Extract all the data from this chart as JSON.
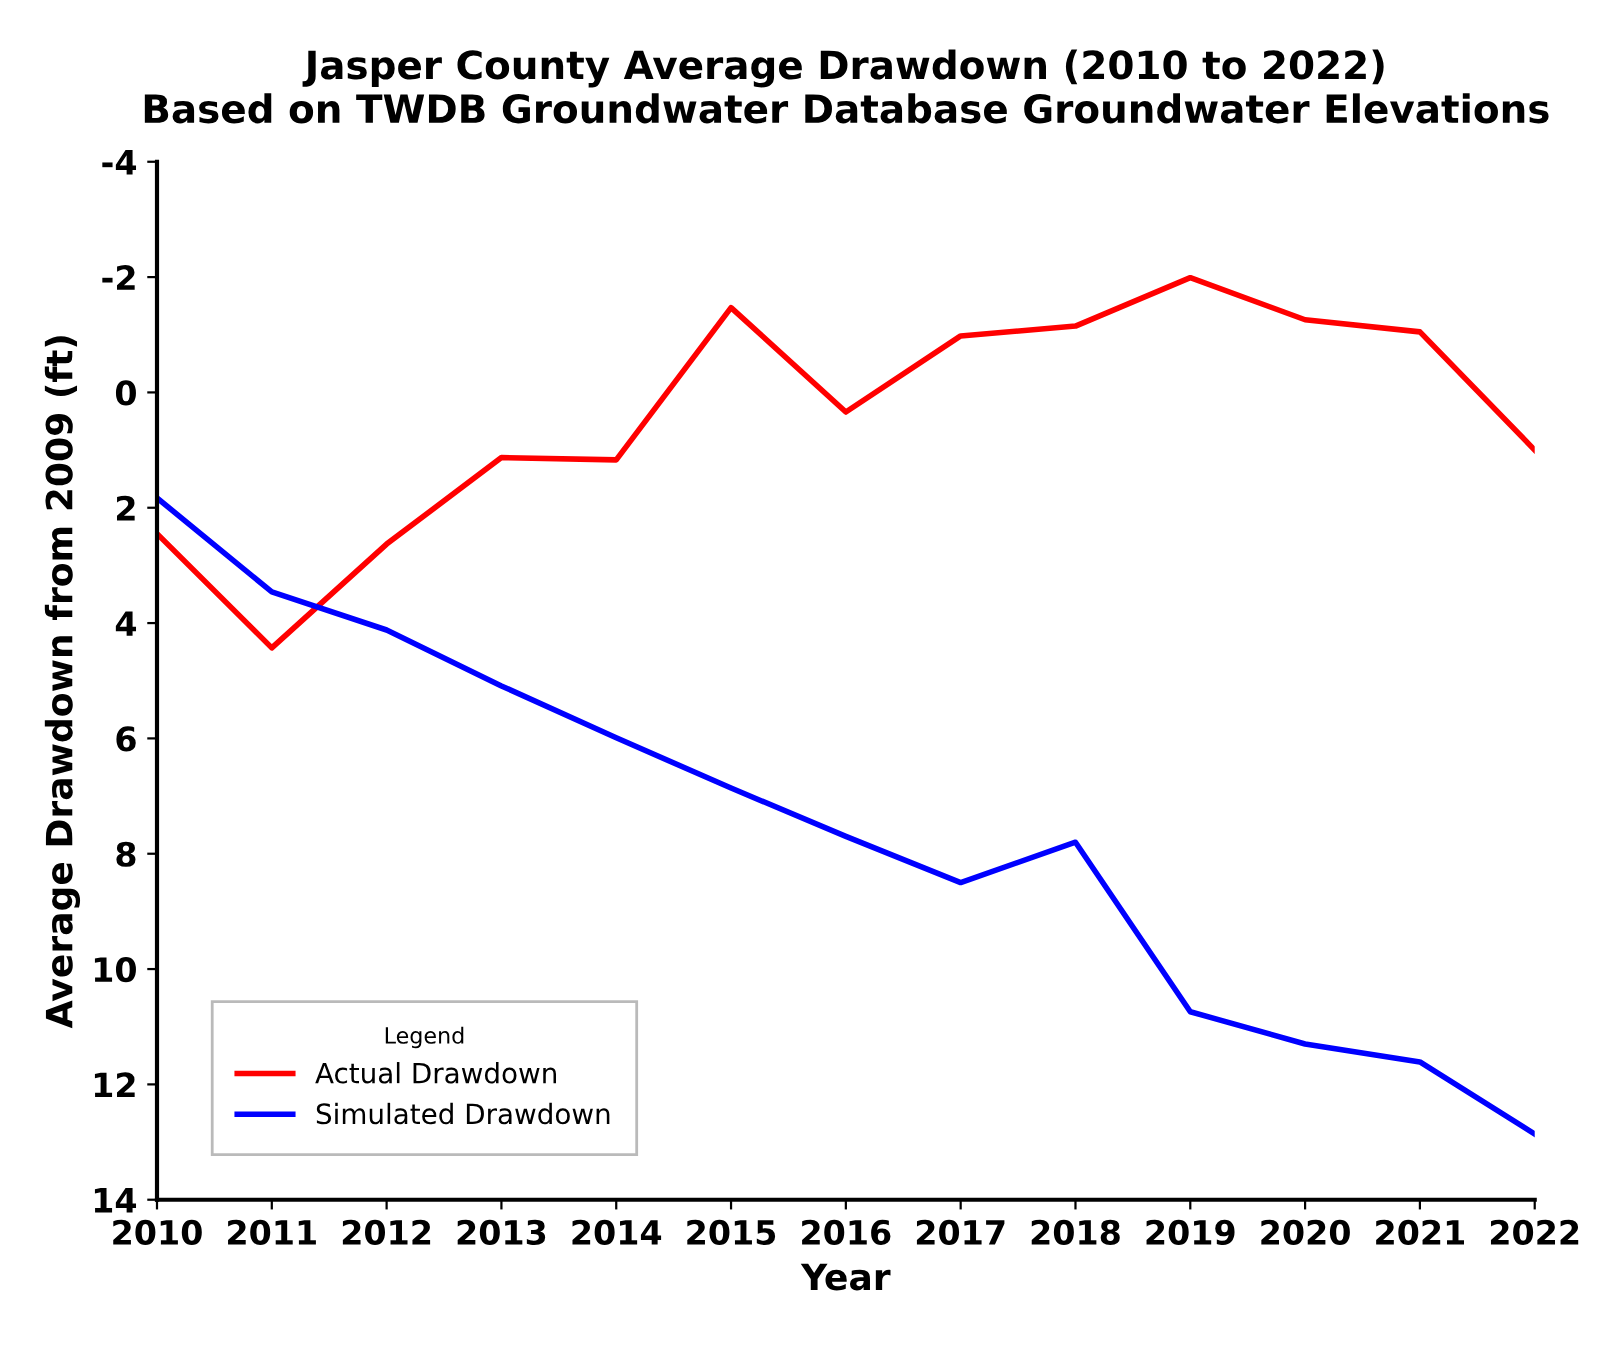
{
  "chart_data": {
    "type": "line",
    "title": "Jasper County Average Drawdown (2010 to 2022)\nBased on TWDB Groundwater Database Groundwater Elevations",
    "xlabel": "Year",
    "ylabel": "Average Drawdown from 2009 (ft)",
    "x": [
      2010,
      2011,
      2012,
      2013,
      2014,
      2015,
      2016,
      2017,
      2018,
      2019,
      2020,
      2021,
      2022
    ],
    "series": [
      {
        "name": "Actual Drawdown",
        "color": "#ff0000",
        "values": [
          2.45,
          4.43,
          2.63,
          1.13,
          1.17,
          -1.47,
          0.34,
          -0.98,
          -1.15,
          -1.99,
          -1.26,
          -1.05,
          1.0
        ]
      },
      {
        "name": "Simulated Drawdown",
        "color": "#0000ff",
        "values": [
          1.83,
          3.46,
          4.12,
          5.09,
          5.99,
          6.86,
          7.7,
          8.5,
          7.8,
          10.74,
          11.3,
          11.61,
          12.86
        ]
      }
    ],
    "xlim": [
      2010,
      2022
    ],
    "xticks": [
      2010,
      2011,
      2012,
      2013,
      2014,
      2015,
      2016,
      2017,
      2018,
      2019,
      2020,
      2021,
      2022
    ],
    "ylim": [
      14,
      -4
    ],
    "yticks": [
      14,
      12,
      10,
      8,
      6,
      4,
      2,
      0,
      -2,
      -4
    ],
    "legend_title": "Legend",
    "legend": "bottom left",
    "grid": false,
    "marker": "none",
    "line_style": "solid"
  }
}
